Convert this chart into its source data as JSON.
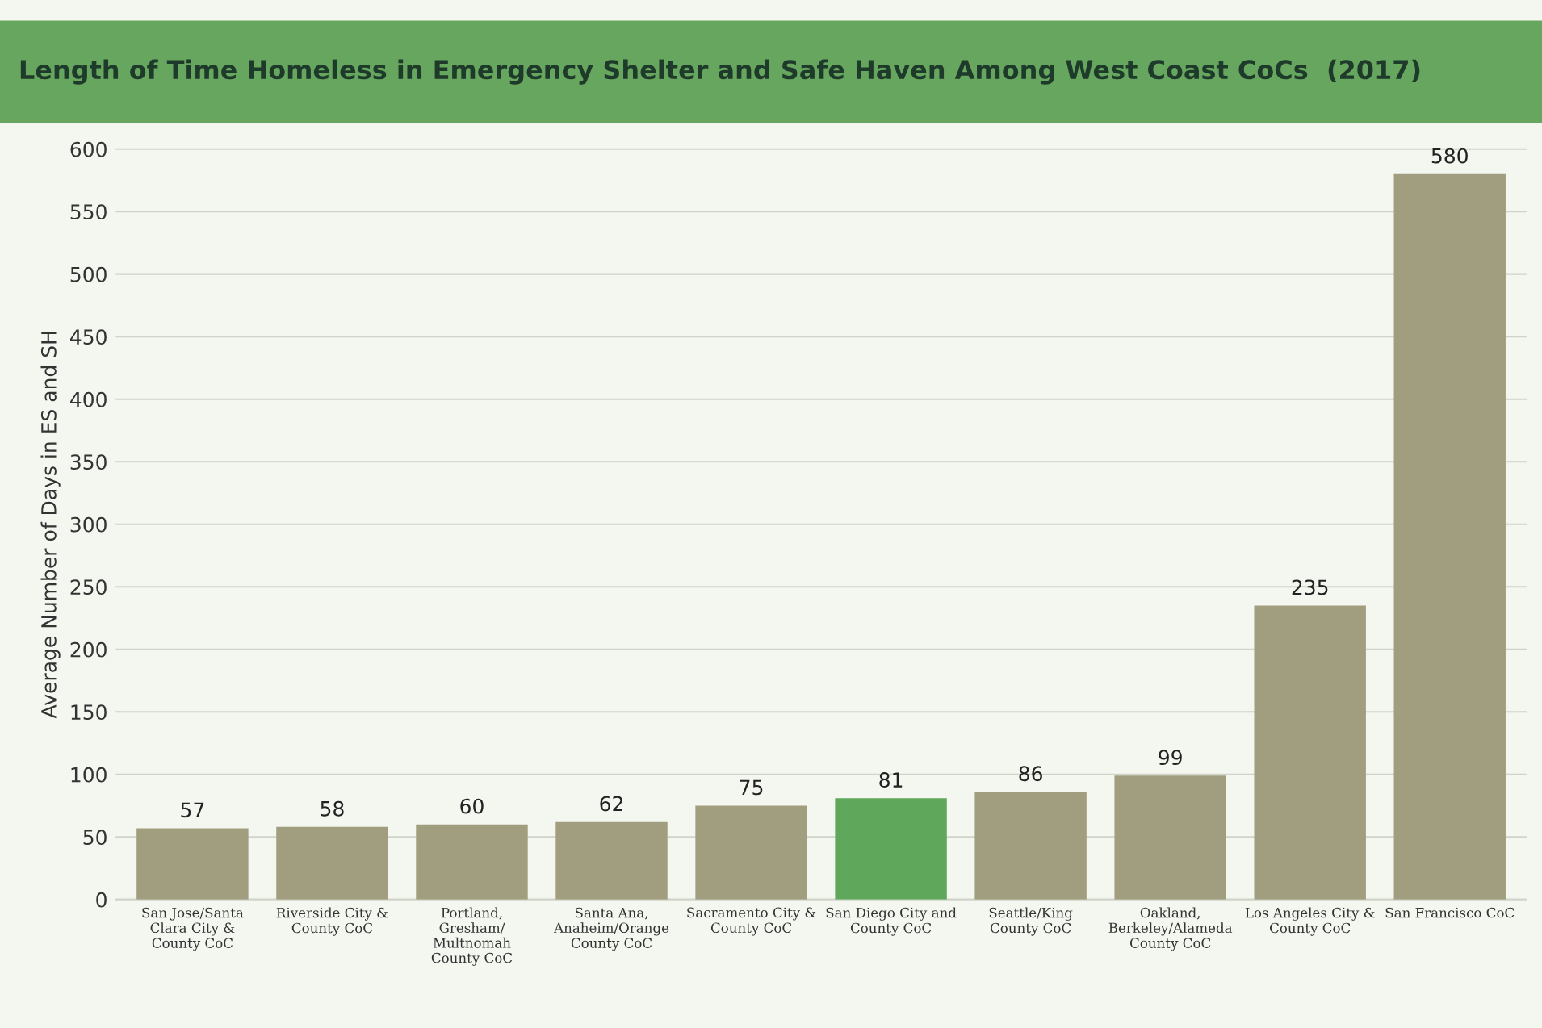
{
  "chart_data": {
    "type": "bar",
    "title": "Length of Time Homeless in Emergency Shelter and Safe Haven Among West Coast CoCs  (2017)",
    "ylabel": "Average Number of Days in ES and SH",
    "categories": [
      "San Jose/Santa\nClara City &\nCounty CoC",
      "Riverside City &\nCounty CoC",
      "Portland,\nGresham/\nMultnomah\nCounty CoC",
      "Santa Ana,\nAnaheim/Orange\nCounty CoC",
      "Sacramento City &\nCounty CoC",
      "San Diego City and\nCounty CoC",
      "Seattle/King\nCounty CoC",
      "Oakland,\nBerkeley/Alameda\nCounty CoC",
      "Los Angeles City &\nCounty CoC",
      "San Francisco CoC"
    ],
    "values": [
      57,
      58,
      60,
      62,
      75,
      81,
      86,
      99,
      235,
      580
    ],
    "colors": [
      "#a19e7f",
      "#a19e7f",
      "#a19e7f",
      "#a19e7f",
      "#a19e7f",
      "#5fa85b",
      "#a19e7f",
      "#a19e7f",
      "#a19e7f",
      "#a19e7f"
    ],
    "ylim": [
      0,
      600
    ],
    "yticks": [
      0,
      50,
      100,
      150,
      200,
      250,
      300,
      350,
      400,
      450,
      500,
      550,
      600
    ],
    "grid": "y",
    "data_labels": true
  }
}
